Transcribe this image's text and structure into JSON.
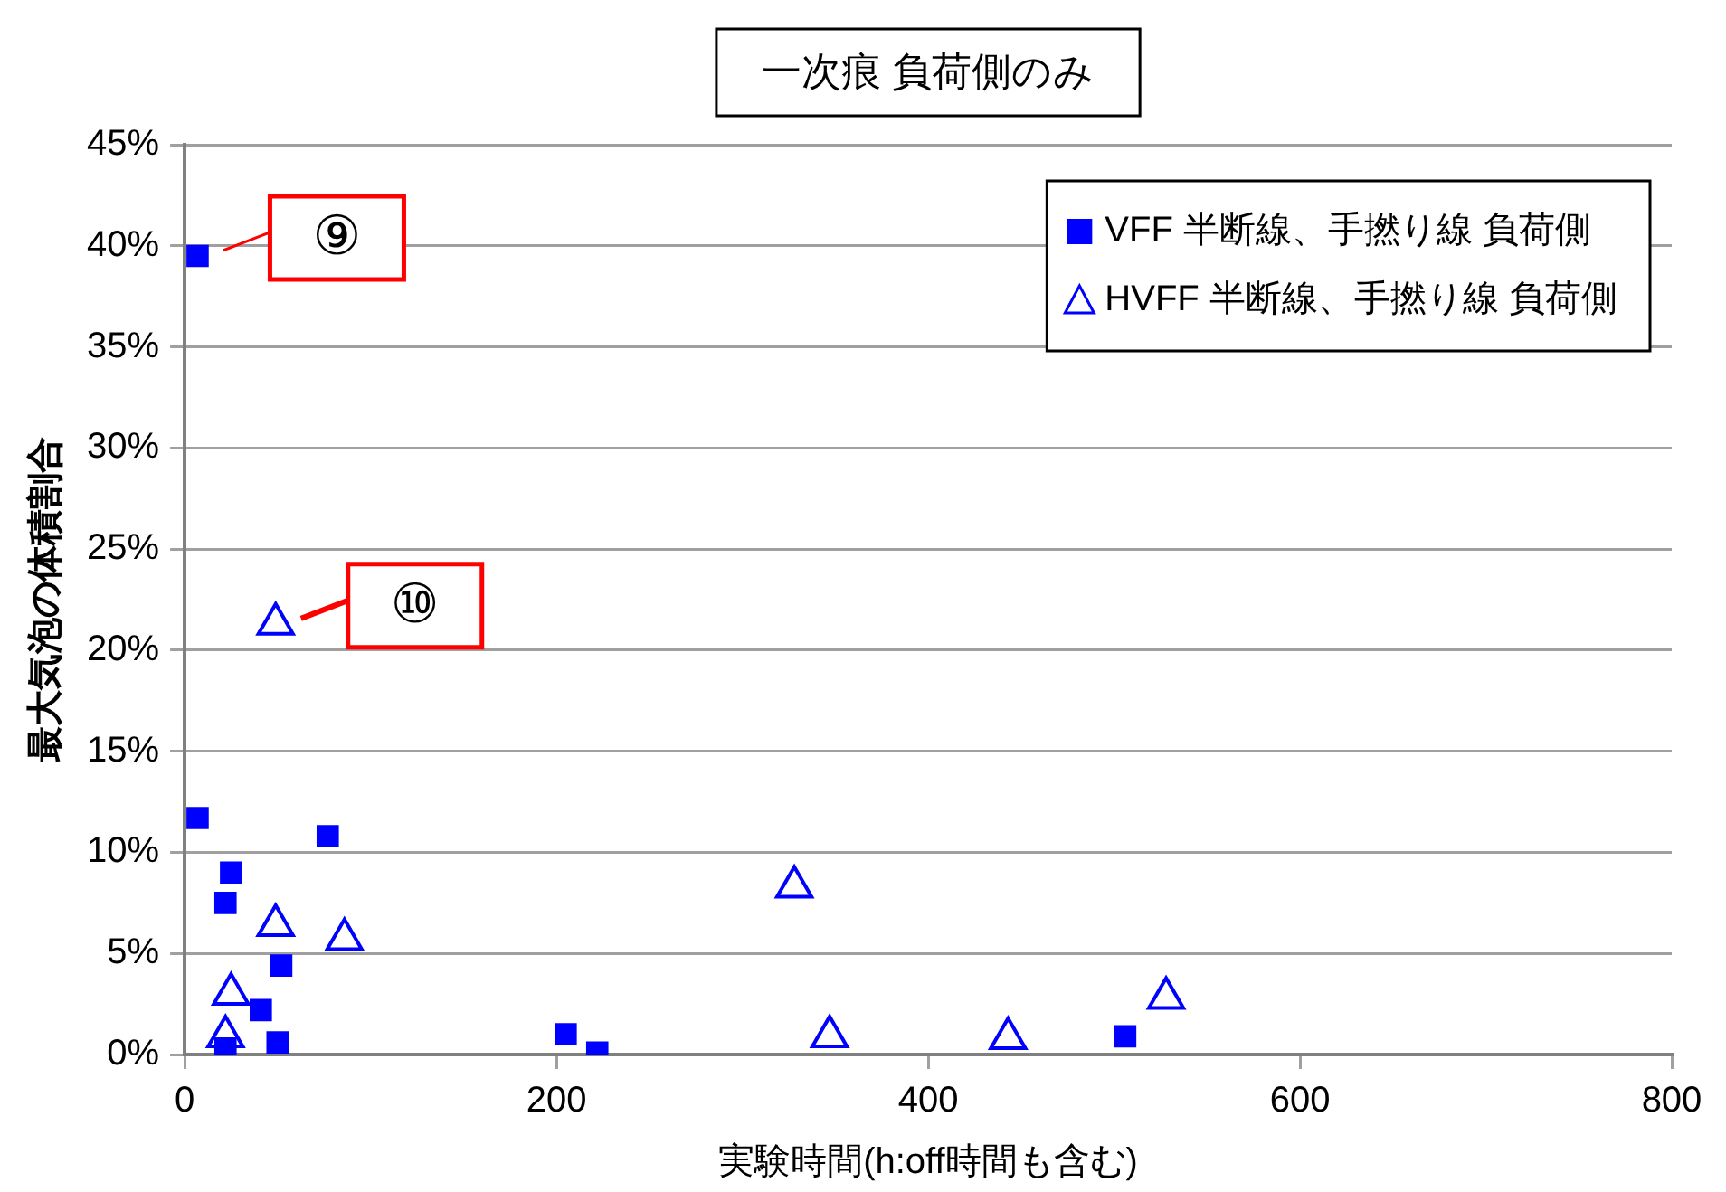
{
  "chart_data": {
    "type": "scatter",
    "title": "一次痕 負荷側のみ",
    "xlabel": "実験時間(h:off時間も含む)",
    "ylabel": "最大気泡の体積割合",
    "xlim": [
      0,
      800
    ],
    "xticks": [
      0,
      200,
      400,
      600,
      800
    ],
    "ylim": [
      0,
      45
    ],
    "yticks": [
      {
        "value": 0,
        "label": "0%"
      },
      {
        "value": 5,
        "label": "5%"
      },
      {
        "value": 10,
        "label": "10%"
      },
      {
        "value": 15,
        "label": "15%"
      },
      {
        "value": 20,
        "label": "20%"
      },
      {
        "value": 25,
        "label": "25%"
      },
      {
        "value": 30,
        "label": "30%"
      },
      {
        "value": 35,
        "label": "35%"
      },
      {
        "value": 40,
        "label": "40%"
      },
      {
        "value": 45,
        "label": "45%"
      }
    ],
    "grid": "y",
    "legend": "top right",
    "series": [
      {
        "name": "VFF 半断線、手撚り線 負荷側",
        "color": "#0000ff",
        "marker": "square",
        "x": [
          7,
          7,
          77,
          25,
          22,
          52,
          41,
          50,
          22,
          205,
          222,
          506
        ],
        "values": [
          39.5,
          11.7,
          10.8,
          9.0,
          7.5,
          4.4,
          2.2,
          0.6,
          0.3,
          1.0,
          0.1,
          0.9
        ]
      },
      {
        "name": "HVFF 半断線、手撚り線 負荷側",
        "color": "#0000ff",
        "marker": "triangle",
        "x": [
          49,
          49,
          86,
          25,
          22,
          328,
          347,
          443,
          528
        ],
        "values": [
          21.3,
          6.4,
          5.7,
          3.0,
          0.9,
          8.3,
          0.9,
          0.8,
          2.8
        ]
      }
    ],
    "annotations": [
      {
        "text": "⑨",
        "x": 7,
        "y": 39.5
      },
      {
        "text": "⑩",
        "x": 49,
        "y": 21.3
      }
    ]
  }
}
